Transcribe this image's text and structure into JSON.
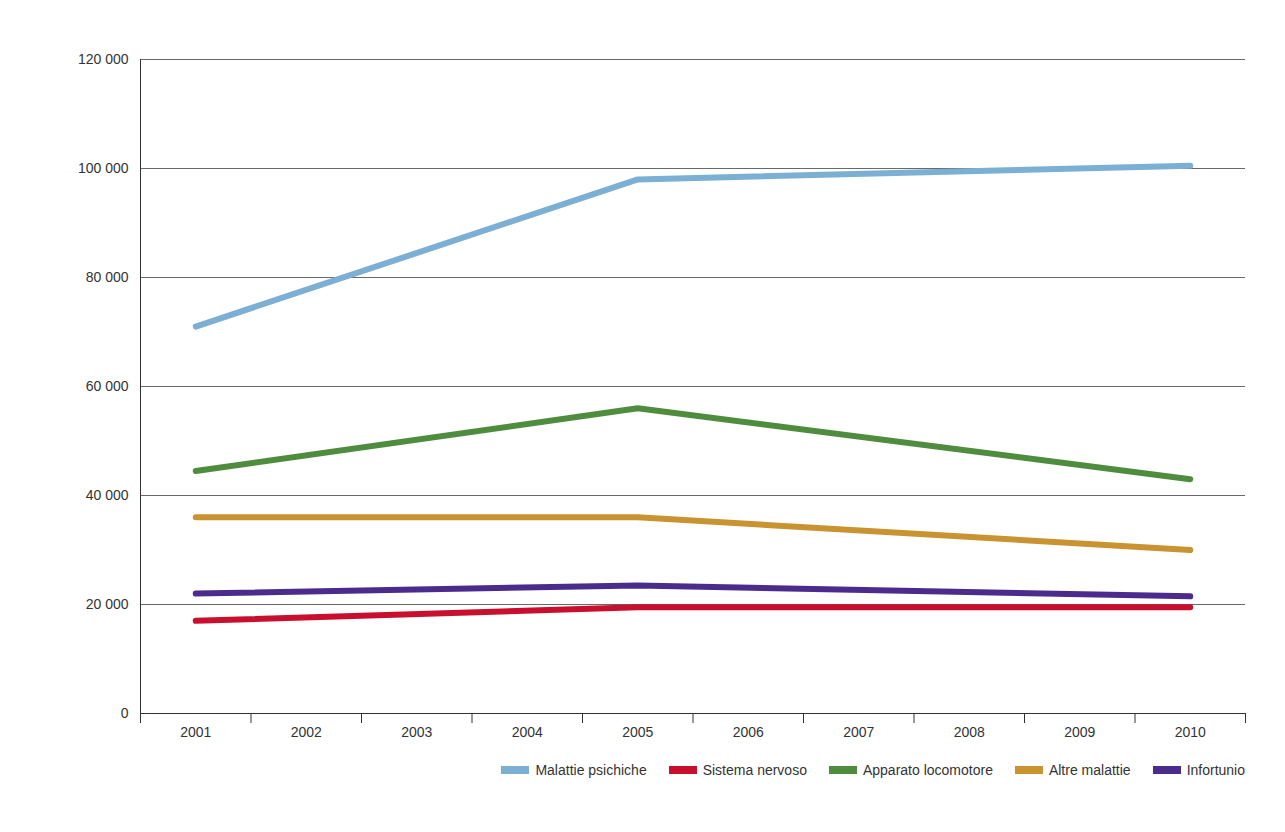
{
  "chart_data": {
    "type": "line",
    "x": [
      2001,
      2005,
      2010
    ],
    "xlim": [
      2000.5,
      2010.5
    ],
    "xticks": [
      2001,
      2002,
      2003,
      2004,
      2005,
      2006,
      2007,
      2008,
      2009,
      2010
    ],
    "ylim": [
      0,
      120000
    ],
    "yticks": [
      0,
      {
        "value": 20000,
        "label": "20 000"
      },
      {
        "value": 40000,
        "label": "40 000"
      },
      {
        "value": 60000,
        "label": "60 000"
      },
      {
        "value": 80000,
        "label": "80 000"
      },
      {
        "value": 100000,
        "label": "100 000"
      },
      {
        "value": 120000,
        "label": "120 000"
      }
    ],
    "grid": true,
    "legend": "bottom-right",
    "series": [
      {
        "name": "Malattie psichiche",
        "color": "#7bafd4",
        "values": [
          71000,
          98000,
          100500
        ]
      },
      {
        "name": "Sistema nervoso",
        "color": "#c8102e",
        "values": [
          17000,
          19500,
          19500
        ]
      },
      {
        "name": "Apparato locomotore",
        "color": "#4e8c3e",
        "values": [
          44500,
          56000,
          43000
        ]
      },
      {
        "name": "Altre malattie",
        "color": "#c89330",
        "values": [
          36000,
          36000,
          30000
        ]
      },
      {
        "name": "Infortunio",
        "color": "#4b2c8c",
        "values": [
          22000,
          23500,
          21500
        ]
      }
    ]
  }
}
